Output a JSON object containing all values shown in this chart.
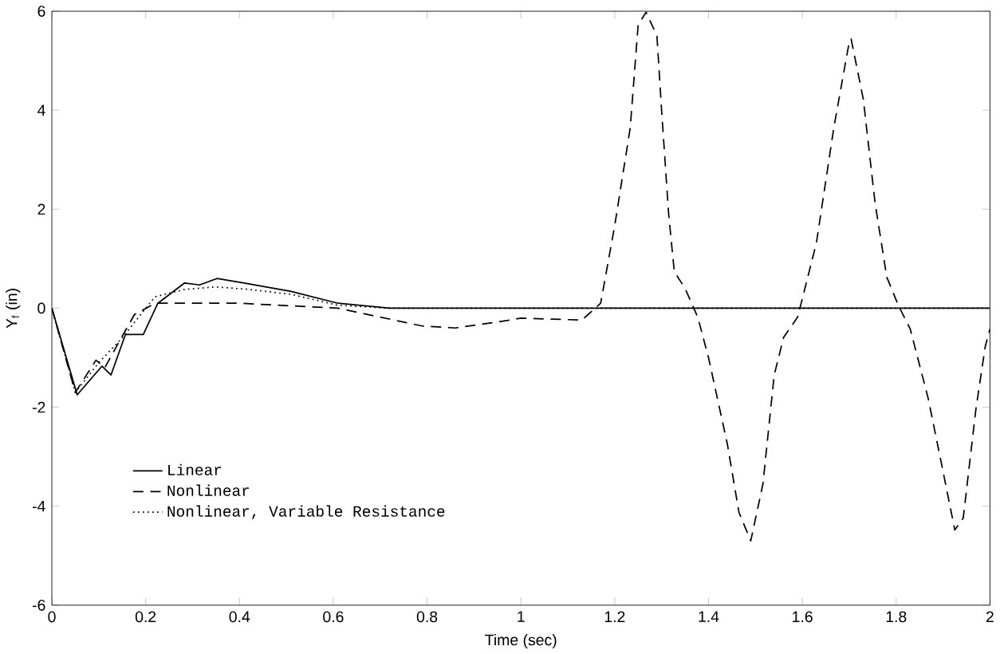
{
  "chart_data": {
    "type": "line",
    "xlabel": "Time (sec)",
    "ylabel": "Y$_{f}$ (in)",
    "xlim": [
      0,
      2
    ],
    "ylim": [
      -6,
      6
    ],
    "xticks": [
      0,
      0.2,
      0.4,
      0.6,
      0.8,
      1,
      1.2,
      1.4,
      1.6,
      1.8,
      2
    ],
    "yticks": [
      -6,
      -4,
      -2,
      0,
      2,
      4,
      6
    ],
    "legend": "bottom left",
    "grid": false,
    "marker": "none",
    "series": [
      {
        "name": "Linear",
        "color": "#000000",
        "line_style": "solid",
        "x": [
          0,
          0.054,
          0.107,
          0.126,
          0.157,
          0.195,
          0.226,
          0.283,
          0.315,
          0.352,
          0.41,
          0.51,
          0.61,
          0.72,
          1.0,
          1.5,
          2
        ],
        "values": [
          0,
          -1.75,
          -1.17,
          -1.35,
          -0.53,
          -0.53,
          0.1,
          0.51,
          0.47,
          0.6,
          0.51,
          0.34,
          0.1,
          0,
          0,
          0,
          0
        ]
      },
      {
        "name": "Nonlinear",
        "color": "#000000",
        "line_style": "dashed",
        "x": [
          0,
          0.05,
          0.094,
          0.113,
          0.145,
          0.176,
          0.22,
          0.4,
          0.61,
          0.79,
          0.86,
          0.97,
          1.0,
          1.13,
          1.17,
          1.2,
          1.233,
          1.25,
          1.267,
          1.29,
          1.3,
          1.315,
          1.327,
          1.35,
          1.377,
          1.4,
          1.44,
          1.465,
          1.49,
          1.516,
          1.54,
          1.56,
          1.59,
          1.63,
          1.667,
          1.7,
          1.704,
          1.73,
          1.755,
          1.78,
          1.805,
          1.83,
          1.868,
          1.9,
          1.925,
          1.943,
          1.97,
          1.99,
          2.0
        ],
        "values": [
          0,
          -1.7,
          -1.05,
          -1.2,
          -0.65,
          -0.13,
          0.1,
          0.1,
          0,
          -0.36,
          -0.4,
          -0.25,
          -0.2,
          -0.24,
          0.1,
          1.67,
          3.64,
          5.73,
          5.98,
          5.5,
          3.99,
          1.9,
          0.74,
          0.4,
          -0.18,
          -1.0,
          -2.74,
          -4.13,
          -4.7,
          -3.55,
          -1.35,
          -0.59,
          -0.18,
          1.32,
          3.64,
          5.38,
          5.44,
          4.22,
          2.13,
          0.63,
          0.05,
          -0.42,
          -1.81,
          -3.3,
          -4.48,
          -4.24,
          -2.04,
          -0.77,
          -0.42
        ]
      },
      {
        "name": "Nonlinear, Variable Resistance",
        "color": "#000000",
        "line_style": "dotted",
        "x": [
          0,
          0.05,
          0.1,
          0.15,
          0.2,
          0.22,
          0.283,
          0.35,
          0.42,
          0.51,
          0.61,
          0.72,
          1.0,
          1.5,
          2
        ],
        "values": [
          0,
          -1.7,
          -1.1,
          -0.6,
          0,
          0.23,
          0.38,
          0.43,
          0.38,
          0.28,
          0.06,
          0,
          0,
          0,
          0
        ]
      }
    ]
  }
}
